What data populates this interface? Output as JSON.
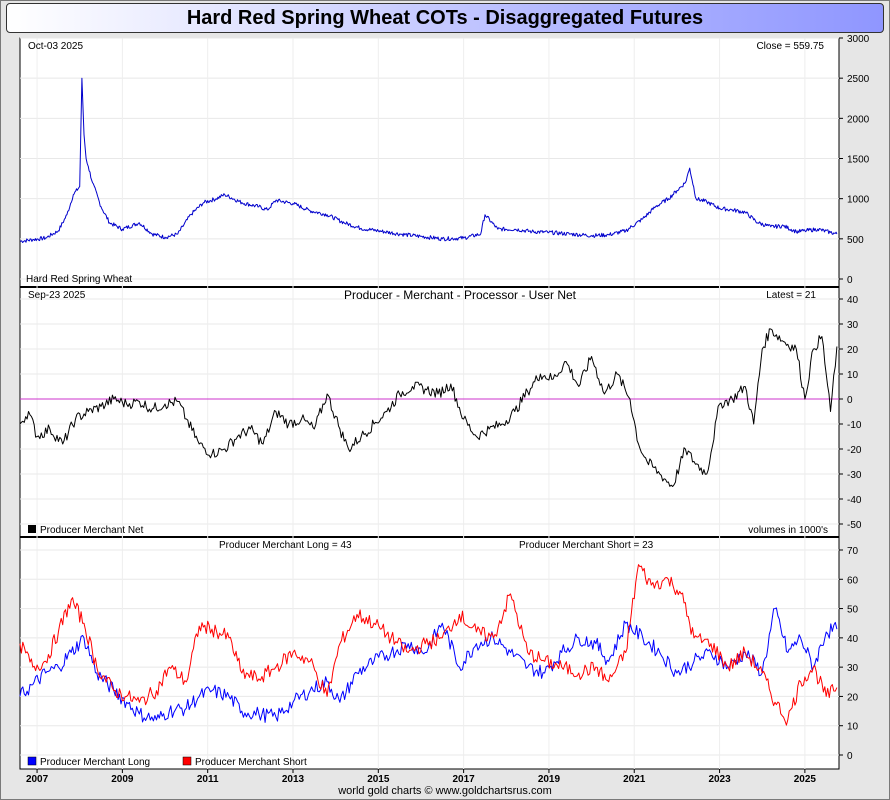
{
  "page": {
    "title": "Hard Red Spring Wheat COTs - Disaggregated Futures",
    "footer": "world gold charts © www.goldchartsrus.com"
  },
  "panel1": {
    "date_label": "Oct-03  2025",
    "close_label": "Close = 559.75",
    "legend_label": "Hard Red Spring Wheat"
  },
  "panel2": {
    "date_label": "Sep-23  2025",
    "title": "Producer - Merchant - Processor - User Net",
    "latest_label": "Latest = 21",
    "legend_label": "Producer Merchant Net",
    "units_label": "volumes in 1000's"
  },
  "panel3": {
    "long_label": "Producer Merchant Long = 43",
    "short_label": "Producer Merchant Short = 23",
    "legend_long": "Producer Merchant Long",
    "legend_short": "Producer Merchant Short"
  },
  "colors": {
    "price": "#0000cc",
    "net": "#000000",
    "zero_line": "#cc33cc",
    "long": "#0000ff",
    "short": "#ff0000"
  },
  "chart_data": [
    {
      "type": "line",
      "title": "Hard Red Spring Wheat",
      "ylim": [
        0,
        3000
      ],
      "y_ticks": [
        "0",
        "500",
        "1000",
        "1500",
        "2000",
        "2500",
        "3000"
      ],
      "x_ticks": [
        "2007",
        "2009",
        "2011",
        "2013",
        "2015",
        "2017",
        "2019",
        "2021",
        "2023",
        "2025"
      ],
      "xlim": [
        2006.6,
        2025.8
      ],
      "series": [
        {
          "name": "Hard Red Spring Wheat",
          "x": [
            2006.6,
            2006.9,
            2007.2,
            2007.5,
            2007.7,
            2007.85,
            2008.0,
            2008.05,
            2008.1,
            2008.15,
            2008.2,
            2008.3,
            2008.5,
            2008.7,
            2009.0,
            2009.4,
            2009.7,
            2010.0,
            2010.3,
            2010.6,
            2010.9,
            2011.2,
            2011.4,
            2011.8,
            2012.2,
            2012.4,
            2012.6,
            2013.0,
            2013.4,
            2013.8,
            2014.2,
            2014.6,
            2015.0,
            2015.5,
            2016.0,
            2016.5,
            2017.0,
            2017.4,
            2017.5,
            2017.8,
            2018.2,
            2018.6,
            2019.0,
            2019.5,
            2020.0,
            2020.4,
            2020.8,
            2021.2,
            2021.5,
            2021.8,
            2022.0,
            2022.2,
            2022.3,
            2022.45,
            2022.7,
            2023.0,
            2023.3,
            2023.6,
            2023.9,
            2024.2,
            2024.5,
            2024.8,
            2025.0,
            2025.3,
            2025.6,
            2025.75
          ],
          "values": [
            470,
            490,
            510,
            600,
            800,
            1050,
            1150,
            2500,
            1800,
            1500,
            1400,
            1200,
            900,
            700,
            620,
            700,
            560,
            520,
            560,
            800,
            950,
            1000,
            1050,
            950,
            900,
            860,
            980,
            940,
            850,
            800,
            700,
            630,
            600,
            560,
            530,
            500,
            510,
            560,
            800,
            620,
            620,
            590,
            580,
            560,
            540,
            550,
            600,
            750,
            900,
            1000,
            1100,
            1200,
            1380,
            1000,
            960,
            880,
            860,
            830,
            700,
            650,
            660,
            590,
            600,
            620,
            580,
            560
          ]
        }
      ]
    },
    {
      "type": "line",
      "title": "Producer - Merchant - Processor - User Net",
      "ylim": [
        -50,
        40
      ],
      "y_ticks": [
        "-50",
        "-40",
        "-30",
        "-20",
        "-10",
        "0",
        "10",
        "20",
        "30",
        "40"
      ],
      "x_ticks": [
        "2007",
        "2009",
        "2011",
        "2013",
        "2015",
        "2017",
        "2019",
        "2021",
        "2023",
        "2025"
      ],
      "xlim": [
        2006.6,
        2025.8
      ],
      "series": [
        {
          "name": "Producer Merchant Net",
          "x": [
            2006.6,
            2006.8,
            2007.0,
            2007.3,
            2007.6,
            2007.9,
            2008.2,
            2008.5,
            2008.8,
            2009.1,
            2009.4,
            2009.7,
            2010.0,
            2010.3,
            2010.5,
            2010.8,
            2011.1,
            2011.4,
            2011.7,
            2012.0,
            2012.3,
            2012.6,
            2012.9,
            2013.2,
            2013.5,
            2013.8,
            2014.1,
            2014.3,
            2014.6,
            2014.9,
            2015.2,
            2015.5,
            2015.8,
            2016.1,
            2016.4,
            2016.7,
            2017.0,
            2017.3,
            2017.6,
            2017.9,
            2018.2,
            2018.5,
            2018.8,
            2019.1,
            2019.4,
            2019.7,
            2020.0,
            2020.3,
            2020.6,
            2020.9,
            2021.1,
            2021.3,
            2021.6,
            2021.9,
            2022.2,
            2022.4,
            2022.7,
            2023.0,
            2023.3,
            2023.6,
            2023.8,
            2024.0,
            2024.2,
            2024.5,
            2024.8,
            2025.0,
            2025.2,
            2025.4,
            2025.6,
            2025.75
          ],
          "values": [
            -10,
            -5,
            -15,
            -12,
            -18,
            -8,
            -5,
            -3,
            0,
            -2,
            -1,
            -4,
            -2,
            -1,
            -8,
            -18,
            -22,
            -20,
            -15,
            -12,
            -18,
            -5,
            -10,
            -8,
            -12,
            2,
            -12,
            -20,
            -15,
            -10,
            -5,
            2,
            5,
            4,
            2,
            6,
            -8,
            -15,
            -12,
            -10,
            -5,
            3,
            10,
            8,
            15,
            5,
            17,
            2,
            10,
            0,
            -18,
            -25,
            -30,
            -35,
            -20,
            -25,
            -30,
            -2,
            0,
            5,
            -10,
            20,
            28,
            23,
            20,
            0,
            20,
            25,
            -5,
            21
          ]
        }
      ]
    },
    {
      "type": "line",
      "title": "Producer Merchant Long / Short",
      "ylim": [
        0,
        70
      ],
      "y_ticks": [
        "0",
        "10",
        "20",
        "30",
        "40",
        "50",
        "60",
        "70"
      ],
      "x_ticks": [
        "2007",
        "2009",
        "2011",
        "2013",
        "2015",
        "2017",
        "2019",
        "2021",
        "2023",
        "2025"
      ],
      "xlim": [
        2006.6,
        2025.8
      ],
      "series": [
        {
          "name": "Producer Merchant Long",
          "x": [
            2006.6,
            2006.9,
            2007.2,
            2007.5,
            2007.8,
            2008.1,
            2008.4,
            2008.8,
            2009.1,
            2009.4,
            2009.8,
            2010.1,
            2010.5,
            2010.8,
            2011.1,
            2011.5,
            2011.8,
            2012.2,
            2012.6,
            2013.0,
            2013.4,
            2013.8,
            2014.1,
            2014.5,
            2014.9,
            2015.3,
            2015.7,
            2016.1,
            2016.5,
            2016.9,
            2017.3,
            2017.7,
            2018.1,
            2018.5,
            2018.9,
            2019.3,
            2019.7,
            2020.1,
            2020.4,
            2020.8,
            2021.2,
            2021.6,
            2022.0,
            2022.4,
            2022.8,
            2023.2,
            2023.6,
            2024.0,
            2024.3,
            2024.6,
            2024.9,
            2025.2,
            2025.5,
            2025.75
          ],
          "values": [
            20,
            24,
            28,
            30,
            35,
            40,
            28,
            22,
            18,
            14,
            12,
            15,
            16,
            20,
            22,
            20,
            15,
            14,
            13,
            18,
            22,
            25,
            18,
            28,
            32,
            35,
            38,
            35,
            45,
            30,
            38,
            40,
            35,
            30,
            28,
            35,
            40,
            38,
            32,
            45,
            40,
            35,
            28,
            32,
            35,
            30,
            35,
            28,
            50,
            35,
            40,
            30,
            42,
            43
          ]
        },
        {
          "name": "Producer Merchant Short",
          "x": [
            2006.6,
            2006.9,
            2007.2,
            2007.5,
            2007.8,
            2008.1,
            2008.4,
            2008.8,
            2009.1,
            2009.4,
            2009.8,
            2010.1,
            2010.5,
            2010.8,
            2011.1,
            2011.5,
            2011.8,
            2012.2,
            2012.6,
            2013.0,
            2013.4,
            2013.8,
            2014.1,
            2014.5,
            2014.9,
            2015.3,
            2015.7,
            2016.1,
            2016.5,
            2016.9,
            2017.3,
            2017.7,
            2018.1,
            2018.5,
            2018.9,
            2019.3,
            2019.7,
            2020.1,
            2020.4,
            2020.8,
            2021.1,
            2021.4,
            2021.8,
            2022.1,
            2022.4,
            2022.8,
            2023.2,
            2023.6,
            2024.0,
            2024.3,
            2024.6,
            2024.9,
            2025.2,
            2025.5,
            2025.75
          ],
          "values": [
            38,
            30,
            32,
            42,
            53,
            45,
            30,
            22,
            20,
            18,
            22,
            30,
            25,
            44,
            43,
            40,
            28,
            26,
            30,
            35,
            32,
            20,
            38,
            48,
            45,
            40,
            35,
            38,
            40,
            48,
            42,
            40,
            55,
            35,
            32,
            30,
            28,
            30,
            25,
            35,
            65,
            58,
            60,
            55,
            40,
            38,
            30,
            35,
            28,
            18,
            12,
            25,
            30,
            20,
            23
          ]
        }
      ]
    }
  ]
}
